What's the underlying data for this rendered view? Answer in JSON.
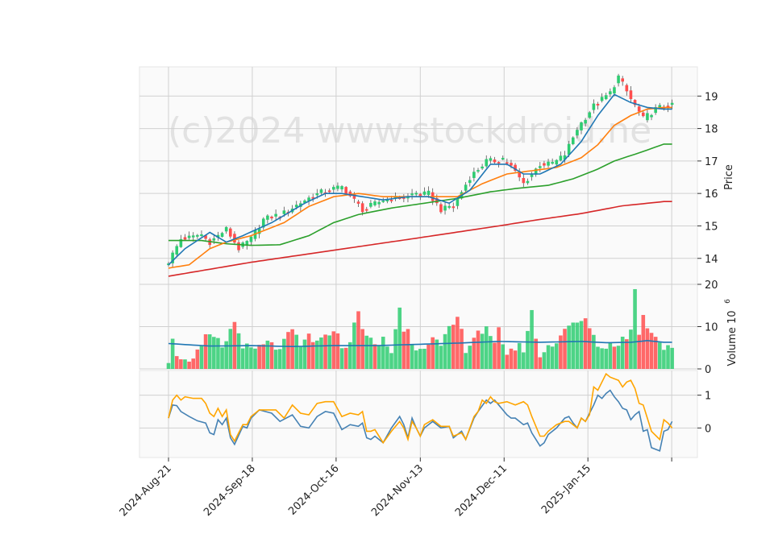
{
  "chart_data": {
    "type": "candlestick",
    "watermark": "(c)2024 www.stockdroid.ne",
    "x_tick_labels": [
      "2024-Aug-21",
      "2024-Sep-18",
      "2024-Oct-16",
      "2024-Nov-13",
      "2024-Dec-11",
      "2025-Jan-15"
    ],
    "colors": {
      "up": "#2ecc71",
      "down": "#ff4d4d",
      "ma_fast": "#1f77b4",
      "ma_mid": "#ff7f0e",
      "ma_slow": "#2ca02c",
      "ma_long": "#d62728",
      "vol_ma": "#1f77b4",
      "osc_a": "#4682b4",
      "osc_b": "#ffa500"
    },
    "price_panel": {
      "ylabel": "Price",
      "ylim": [
        13.2,
        19.9
      ],
      "ticks": [
        14,
        15,
        16,
        17,
        18,
        19
      ],
      "tick_labels": [
        "14",
        "15",
        "16",
        "17",
        "18",
        "19"
      ],
      "anchors": [
        [
          0,
          13.9
        ],
        [
          3,
          14.6
        ],
        [
          8,
          14.7
        ],
        [
          10,
          14.5
        ],
        [
          14,
          14.9
        ],
        [
          17,
          14.3
        ],
        [
          20,
          14.6
        ],
        [
          23,
          15.2
        ],
        [
          28,
          15.4
        ],
        [
          33,
          15.8
        ],
        [
          38,
          16.1
        ],
        [
          42,
          16.2
        ],
        [
          47,
          15.5
        ],
        [
          52,
          15.8
        ],
        [
          58,
          15.9
        ],
        [
          63,
          16.0
        ],
        [
          66,
          15.5
        ],
        [
          69,
          15.6
        ],
        [
          73,
          16.5
        ],
        [
          77,
          17.0
        ],
        [
          82,
          17.0
        ],
        [
          86,
          16.3
        ],
        [
          90,
          16.9
        ],
        [
          93,
          16.9
        ],
        [
          96,
          17.2
        ],
        [
          99,
          18.0
        ],
        [
          103,
          18.7
        ],
        [
          107,
          19.1
        ],
        [
          109,
          19.6
        ],
        [
          112,
          18.9
        ],
        [
          115,
          18.3
        ],
        [
          118,
          18.6
        ],
        [
          120,
          18.7
        ]
      ],
      "ma_fast": [
        [
          0,
          13.8
        ],
        [
          4,
          14.3
        ],
        [
          10,
          14.8
        ],
        [
          14,
          14.5
        ],
        [
          18,
          14.7
        ],
        [
          25,
          15.1
        ],
        [
          33,
          15.7
        ],
        [
          38,
          16.0
        ],
        [
          42,
          16.0
        ],
        [
          47,
          15.9
        ],
        [
          52,
          15.8
        ],
        [
          58,
          15.9
        ],
        [
          63,
          15.9
        ],
        [
          68,
          15.7
        ],
        [
          73,
          16.1
        ],
        [
          78,
          16.9
        ],
        [
          82,
          16.9
        ],
        [
          86,
          16.6
        ],
        [
          90,
          16.6
        ],
        [
          95,
          16.9
        ],
        [
          100,
          17.6
        ],
        [
          104,
          18.4
        ],
        [
          108,
          19.05
        ],
        [
          112,
          18.8
        ],
        [
          116,
          18.65
        ],
        [
          120,
          18.6
        ]
      ],
      "ma_mid": [
        [
          0,
          13.7
        ],
        [
          5,
          13.8
        ],
        [
          10,
          14.3
        ],
        [
          14,
          14.5
        ],
        [
          20,
          14.7
        ],
        [
          28,
          15.1
        ],
        [
          34,
          15.6
        ],
        [
          40,
          15.9
        ],
        [
          46,
          16.0
        ],
        [
          52,
          15.9
        ],
        [
          58,
          15.9
        ],
        [
          64,
          15.9
        ],
        [
          70,
          15.9
        ],
        [
          76,
          16.3
        ],
        [
          82,
          16.6
        ],
        [
          88,
          16.7
        ],
        [
          94,
          16.8
        ],
        [
          100,
          17.1
        ],
        [
          104,
          17.5
        ],
        [
          108,
          18.1
        ],
        [
          112,
          18.4
        ],
        [
          116,
          18.6
        ],
        [
          120,
          18.65
        ]
      ],
      "ma_slow": [
        [
          0,
          14.55
        ],
        [
          8,
          14.55
        ],
        [
          14,
          14.45
        ],
        [
          20,
          14.4
        ],
        [
          27,
          14.42
        ],
        [
          34,
          14.7
        ],
        [
          40,
          15.1
        ],
        [
          46,
          15.35
        ],
        [
          54,
          15.55
        ],
        [
          62,
          15.7
        ],
        [
          70,
          15.85
        ],
        [
          78,
          16.05
        ],
        [
          84,
          16.15
        ],
        [
          92,
          16.25
        ],
        [
          98,
          16.45
        ],
        [
          104,
          16.75
        ],
        [
          108,
          17.0
        ],
        [
          114,
          17.25
        ],
        [
          120,
          17.52
        ]
      ],
      "ma_long": [
        [
          0,
          13.45
        ],
        [
          20,
          13.88
        ],
        [
          40,
          14.25
        ],
        [
          60,
          14.62
        ],
        [
          80,
          15.0
        ],
        [
          90,
          15.2
        ],
        [
          100,
          15.38
        ],
        [
          110,
          15.62
        ],
        [
          120,
          15.75
        ]
      ]
    },
    "volume_panel": {
      "ylabel": "Volume  10",
      "exponent": "6",
      "ylim": [
        0,
        20
      ],
      "ticks": [
        0,
        10,
        20
      ],
      "tick_labels": [
        "0",
        "10",
        "20"
      ],
      "anchors": [
        [
          0,
          2.5
        ],
        [
          1,
          8
        ],
        [
          2,
          4
        ],
        [
          3,
          1.5
        ],
        [
          4,
          3
        ],
        [
          6,
          2
        ],
        [
          8,
          5
        ],
        [
          9,
          7
        ],
        [
          11,
          7.5
        ],
        [
          13,
          5
        ],
        [
          15,
          9
        ],
        [
          16,
          11
        ],
        [
          18,
          6
        ],
        [
          20,
          4
        ],
        [
          22,
          5
        ],
        [
          24,
          6
        ],
        [
          26,
          5
        ],
        [
          28,
          6
        ],
        [
          30,
          9
        ],
        [
          32,
          5
        ],
        [
          34,
          8
        ],
        [
          36,
          6
        ],
        [
          38,
          7
        ],
        [
          40,
          10
        ],
        [
          42,
          5
        ],
        [
          44,
          7
        ],
        [
          46,
          13
        ],
        [
          48,
          8
        ],
        [
          50,
          5
        ],
        [
          52,
          7
        ],
        [
          54,
          4
        ],
        [
          56,
          15
        ],
        [
          57,
          8.5
        ],
        [
          58,
          9
        ],
        [
          60,
          5
        ],
        [
          62,
          6
        ],
        [
          64,
          7
        ],
        [
          66,
          5
        ],
        [
          68,
          9
        ],
        [
          70,
          12
        ],
        [
          72,
          5
        ],
        [
          75,
          9
        ],
        [
          77,
          9
        ],
        [
          79,
          5
        ],
        [
          80,
          9
        ],
        [
          82,
          4
        ],
        [
          84,
          5
        ],
        [
          86,
          5
        ],
        [
          88,
          13
        ],
        [
          90,
          3
        ],
        [
          92,
          5
        ],
        [
          95,
          8
        ],
        [
          97,
          11
        ],
        [
          99,
          10
        ],
        [
          101,
          12
        ],
        [
          103,
          7
        ],
        [
          105,
          5
        ],
        [
          108,
          6
        ],
        [
          110,
          7
        ],
        [
          112,
          9
        ],
        [
          113,
          18.5
        ],
        [
          114,
          9
        ],
        [
          115,
          12
        ],
        [
          117,
          9
        ],
        [
          118,
          8
        ],
        [
          120,
          5.5
        ]
      ],
      "vol_ma": [
        [
          0,
          6
        ],
        [
          10,
          5.4
        ],
        [
          20,
          5.5
        ],
        [
          30,
          5.3
        ],
        [
          40,
          5.5
        ],
        [
          50,
          5.5
        ],
        [
          60,
          5.8
        ],
        [
          70,
          6.1
        ],
        [
          80,
          6.5
        ],
        [
          90,
          6.3
        ],
        [
          100,
          6.5
        ],
        [
          106,
          6.2
        ],
        [
          112,
          6.3
        ],
        [
          116,
          6.7
        ],
        [
          120,
          6.3
        ]
      ]
    },
    "osc_panel": {
      "ylim": [
        -0.9,
        1.75
      ],
      "ticks": [
        0,
        1
      ],
      "tick_labels": [
        "0",
        "1"
      ],
      "line_a": [
        [
          0,
          0.3
        ],
        [
          1,
          0.7
        ],
        [
          2,
          0.68
        ],
        [
          3,
          0.5
        ],
        [
          5,
          0.35
        ],
        [
          7,
          0.22
        ],
        [
          9,
          0.15
        ],
        [
          10,
          -0.15
        ],
        [
          11,
          -0.2
        ],
        [
          12,
          0.25
        ],
        [
          13,
          0.1
        ],
        [
          14,
          0.3
        ],
        [
          15,
          -0.3
        ],
        [
          16,
          -0.5
        ],
        [
          18,
          0.05
        ],
        [
          19,
          0.0
        ],
        [
          20,
          0.3
        ],
        [
          22,
          0.55
        ],
        [
          25,
          0.45
        ],
        [
          27,
          0.2
        ],
        [
          30,
          0.4
        ],
        [
          32,
          0.05
        ],
        [
          34,
          0.0
        ],
        [
          36,
          0.35
        ],
        [
          38,
          0.5
        ],
        [
          40,
          0.45
        ],
        [
          42,
          -0.05
        ],
        [
          44,
          0.1
        ],
        [
          46,
          0.05
        ],
        [
          47,
          0.15
        ],
        [
          48,
          -0.3
        ],
        [
          49,
          -0.35
        ],
        [
          50,
          -0.25
        ],
        [
          52,
          -0.45
        ],
        [
          54,
          0.0
        ],
        [
          56,
          0.35
        ],
        [
          57,
          0.1
        ],
        [
          58,
          -0.3
        ],
        [
          59,
          0.3
        ],
        [
          60,
          0.0
        ],
        [
          61,
          -0.25
        ],
        [
          62,
          0.0
        ],
        [
          64,
          0.2
        ],
        [
          66,
          0.0
        ],
        [
          68,
          0.05
        ],
        [
          69,
          -0.3
        ],
        [
          71,
          -0.1
        ],
        [
          72,
          -0.35
        ],
        [
          74,
          0.3
        ],
        [
          75,
          0.5
        ],
        [
          77,
          0.85
        ],
        [
          78,
          0.75
        ],
        [
          79,
          0.85
        ],
        [
          80,
          0.7
        ],
        [
          82,
          0.4
        ],
        [
          83,
          0.3
        ],
        [
          84,
          0.3
        ],
        [
          86,
          0.1
        ],
        [
          87,
          0.15
        ],
        [
          88,
          -0.15
        ],
        [
          90,
          -0.55
        ],
        [
          91,
          -0.45
        ],
        [
          92,
          -0.2
        ],
        [
          94,
          0.0
        ],
        [
          96,
          0.3
        ],
        [
          97,
          0.35
        ],
        [
          98,
          0.15
        ],
        [
          99,
          0.0
        ],
        [
          100,
          0.3
        ],
        [
          101,
          0.2
        ],
        [
          103,
          0.7
        ],
        [
          104,
          1.0
        ],
        [
          105,
          0.9
        ],
        [
          106,
          1.05
        ],
        [
          107,
          1.15
        ],
        [
          108,
          0.95
        ],
        [
          109,
          0.8
        ],
        [
          110,
          0.6
        ],
        [
          111,
          0.55
        ],
        [
          112,
          0.25
        ],
        [
          113,
          0.4
        ],
        [
          114,
          0.5
        ],
        [
          115,
          -0.1
        ],
        [
          116,
          -0.05
        ],
        [
          117,
          -0.6
        ],
        [
          119,
          -0.7
        ],
        [
          120,
          -0.1
        ],
        [
          121,
          -0.05
        ],
        [
          122,
          0.2
        ]
      ],
      "line_b": [
        [
          0,
          0.3
        ],
        [
          1,
          0.85
        ],
        [
          2,
          1.0
        ],
        [
          3,
          0.85
        ],
        [
          4,
          0.95
        ],
        [
          6,
          0.9
        ],
        [
          8,
          0.9
        ],
        [
          9,
          0.75
        ],
        [
          10,
          0.45
        ],
        [
          11,
          0.35
        ],
        [
          12,
          0.6
        ],
        [
          13,
          0.35
        ],
        [
          14,
          0.55
        ],
        [
          15,
          -0.2
        ],
        [
          16,
          -0.4
        ],
        [
          18,
          0.1
        ],
        [
          19,
          0.1
        ],
        [
          20,
          0.35
        ],
        [
          22,
          0.55
        ],
        [
          26,
          0.55
        ],
        [
          28,
          0.3
        ],
        [
          30,
          0.7
        ],
        [
          32,
          0.45
        ],
        [
          34,
          0.4
        ],
        [
          36,
          0.75
        ],
        [
          38,
          0.8
        ],
        [
          40,
          0.8
        ],
        [
          42,
          0.35
        ],
        [
          44,
          0.45
        ],
        [
          46,
          0.4
        ],
        [
          47,
          0.5
        ],
        [
          48,
          -0.1
        ],
        [
          49,
          -0.1
        ],
        [
          50,
          -0.05
        ],
        [
          52,
          -0.45
        ],
        [
          54,
          -0.1
        ],
        [
          56,
          0.2
        ],
        [
          57,
          0.0
        ],
        [
          58,
          -0.35
        ],
        [
          59,
          0.2
        ],
        [
          60,
          0.0
        ],
        [
          61,
          -0.25
        ],
        [
          62,
          0.1
        ],
        [
          64,
          0.25
        ],
        [
          66,
          0.05
        ],
        [
          68,
          0.05
        ],
        [
          69,
          -0.25
        ],
        [
          71,
          -0.15
        ],
        [
          72,
          -0.35
        ],
        [
          74,
          0.35
        ],
        [
          75,
          0.5
        ],
        [
          76,
          0.85
        ],
        [
          77,
          0.75
        ],
        [
          78,
          0.95
        ],
        [
          79,
          0.8
        ],
        [
          80,
          0.75
        ],
        [
          82,
          0.8
        ],
        [
          84,
          0.7
        ],
        [
          86,
          0.8
        ],
        [
          87,
          0.7
        ],
        [
          88,
          0.35
        ],
        [
          90,
          -0.25
        ],
        [
          91,
          -0.25
        ],
        [
          92,
          -0.1
        ],
        [
          94,
          0.1
        ],
        [
          96,
          0.2
        ],
        [
          97,
          0.2
        ],
        [
          98,
          0.1
        ],
        [
          99,
          0.0
        ],
        [
          100,
          0.3
        ],
        [
          101,
          0.2
        ],
        [
          102,
          0.4
        ],
        [
          103,
          1.25
        ],
        [
          104,
          1.15
        ],
        [
          105,
          1.4
        ],
        [
          106,
          1.65
        ],
        [
          107,
          1.55
        ],
        [
          108,
          1.5
        ],
        [
          109,
          1.45
        ],
        [
          110,
          1.25
        ],
        [
          111,
          1.4
        ],
        [
          112,
          1.45
        ],
        [
          113,
          1.2
        ],
        [
          114,
          0.75
        ],
        [
          115,
          0.7
        ],
        [
          117,
          -0.1
        ],
        [
          119,
          -0.35
        ],
        [
          120,
          0.25
        ],
        [
          121,
          0.15
        ],
        [
          122,
          0.0
        ]
      ]
    }
  }
}
